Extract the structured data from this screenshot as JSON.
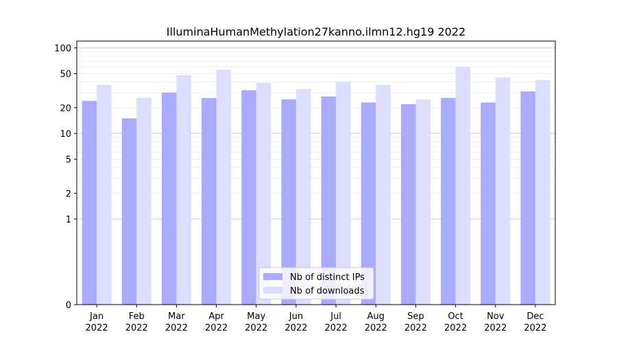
{
  "chart_data": {
    "type": "bar",
    "title": "IlluminaHumanMethylation27kanno.ilmn12.hg19 2022",
    "xlabel": "",
    "ylabel": "",
    "yscale": "symlog",
    "ylim": [
      0,
      120
    ],
    "yticks": [
      {
        "value": 0,
        "label": "0"
      },
      {
        "value": 1,
        "label": "1"
      },
      {
        "value": 2,
        "label": "2"
      },
      {
        "value": 5,
        "label": "5"
      },
      {
        "value": 10,
        "label": "10"
      },
      {
        "value": 20,
        "label": "20"
      },
      {
        "value": 50,
        "label": "50"
      },
      {
        "value": 100,
        "label": "100"
      }
    ],
    "categories": [
      {
        "month": "Jan",
        "year": "2022"
      },
      {
        "month": "Feb",
        "year": "2022"
      },
      {
        "month": "Mar",
        "year": "2022"
      },
      {
        "month": "Apr",
        "year": "2022"
      },
      {
        "month": "May",
        "year": "2022"
      },
      {
        "month": "Jun",
        "year": "2022"
      },
      {
        "month": "Jul",
        "year": "2022"
      },
      {
        "month": "Aug",
        "year": "2022"
      },
      {
        "month": "Sep",
        "year": "2022"
      },
      {
        "month": "Oct",
        "year": "2022"
      },
      {
        "month": "Nov",
        "year": "2022"
      },
      {
        "month": "Dec",
        "year": "2022"
      }
    ],
    "series": [
      {
        "name": "Nb of distinct IPs",
        "color": "#aaaaff",
        "values": [
          24,
          15,
          30,
          26,
          32,
          25,
          27,
          23,
          22,
          26,
          23,
          31
        ]
      },
      {
        "name": "Nb of downloads",
        "color": "#ddddff",
        "values": [
          37,
          26,
          48,
          55,
          39,
          33,
          40,
          37,
          25,
          60,
          45,
          42
        ]
      }
    ],
    "grid": true,
    "legend_position": "bottom-center"
  }
}
